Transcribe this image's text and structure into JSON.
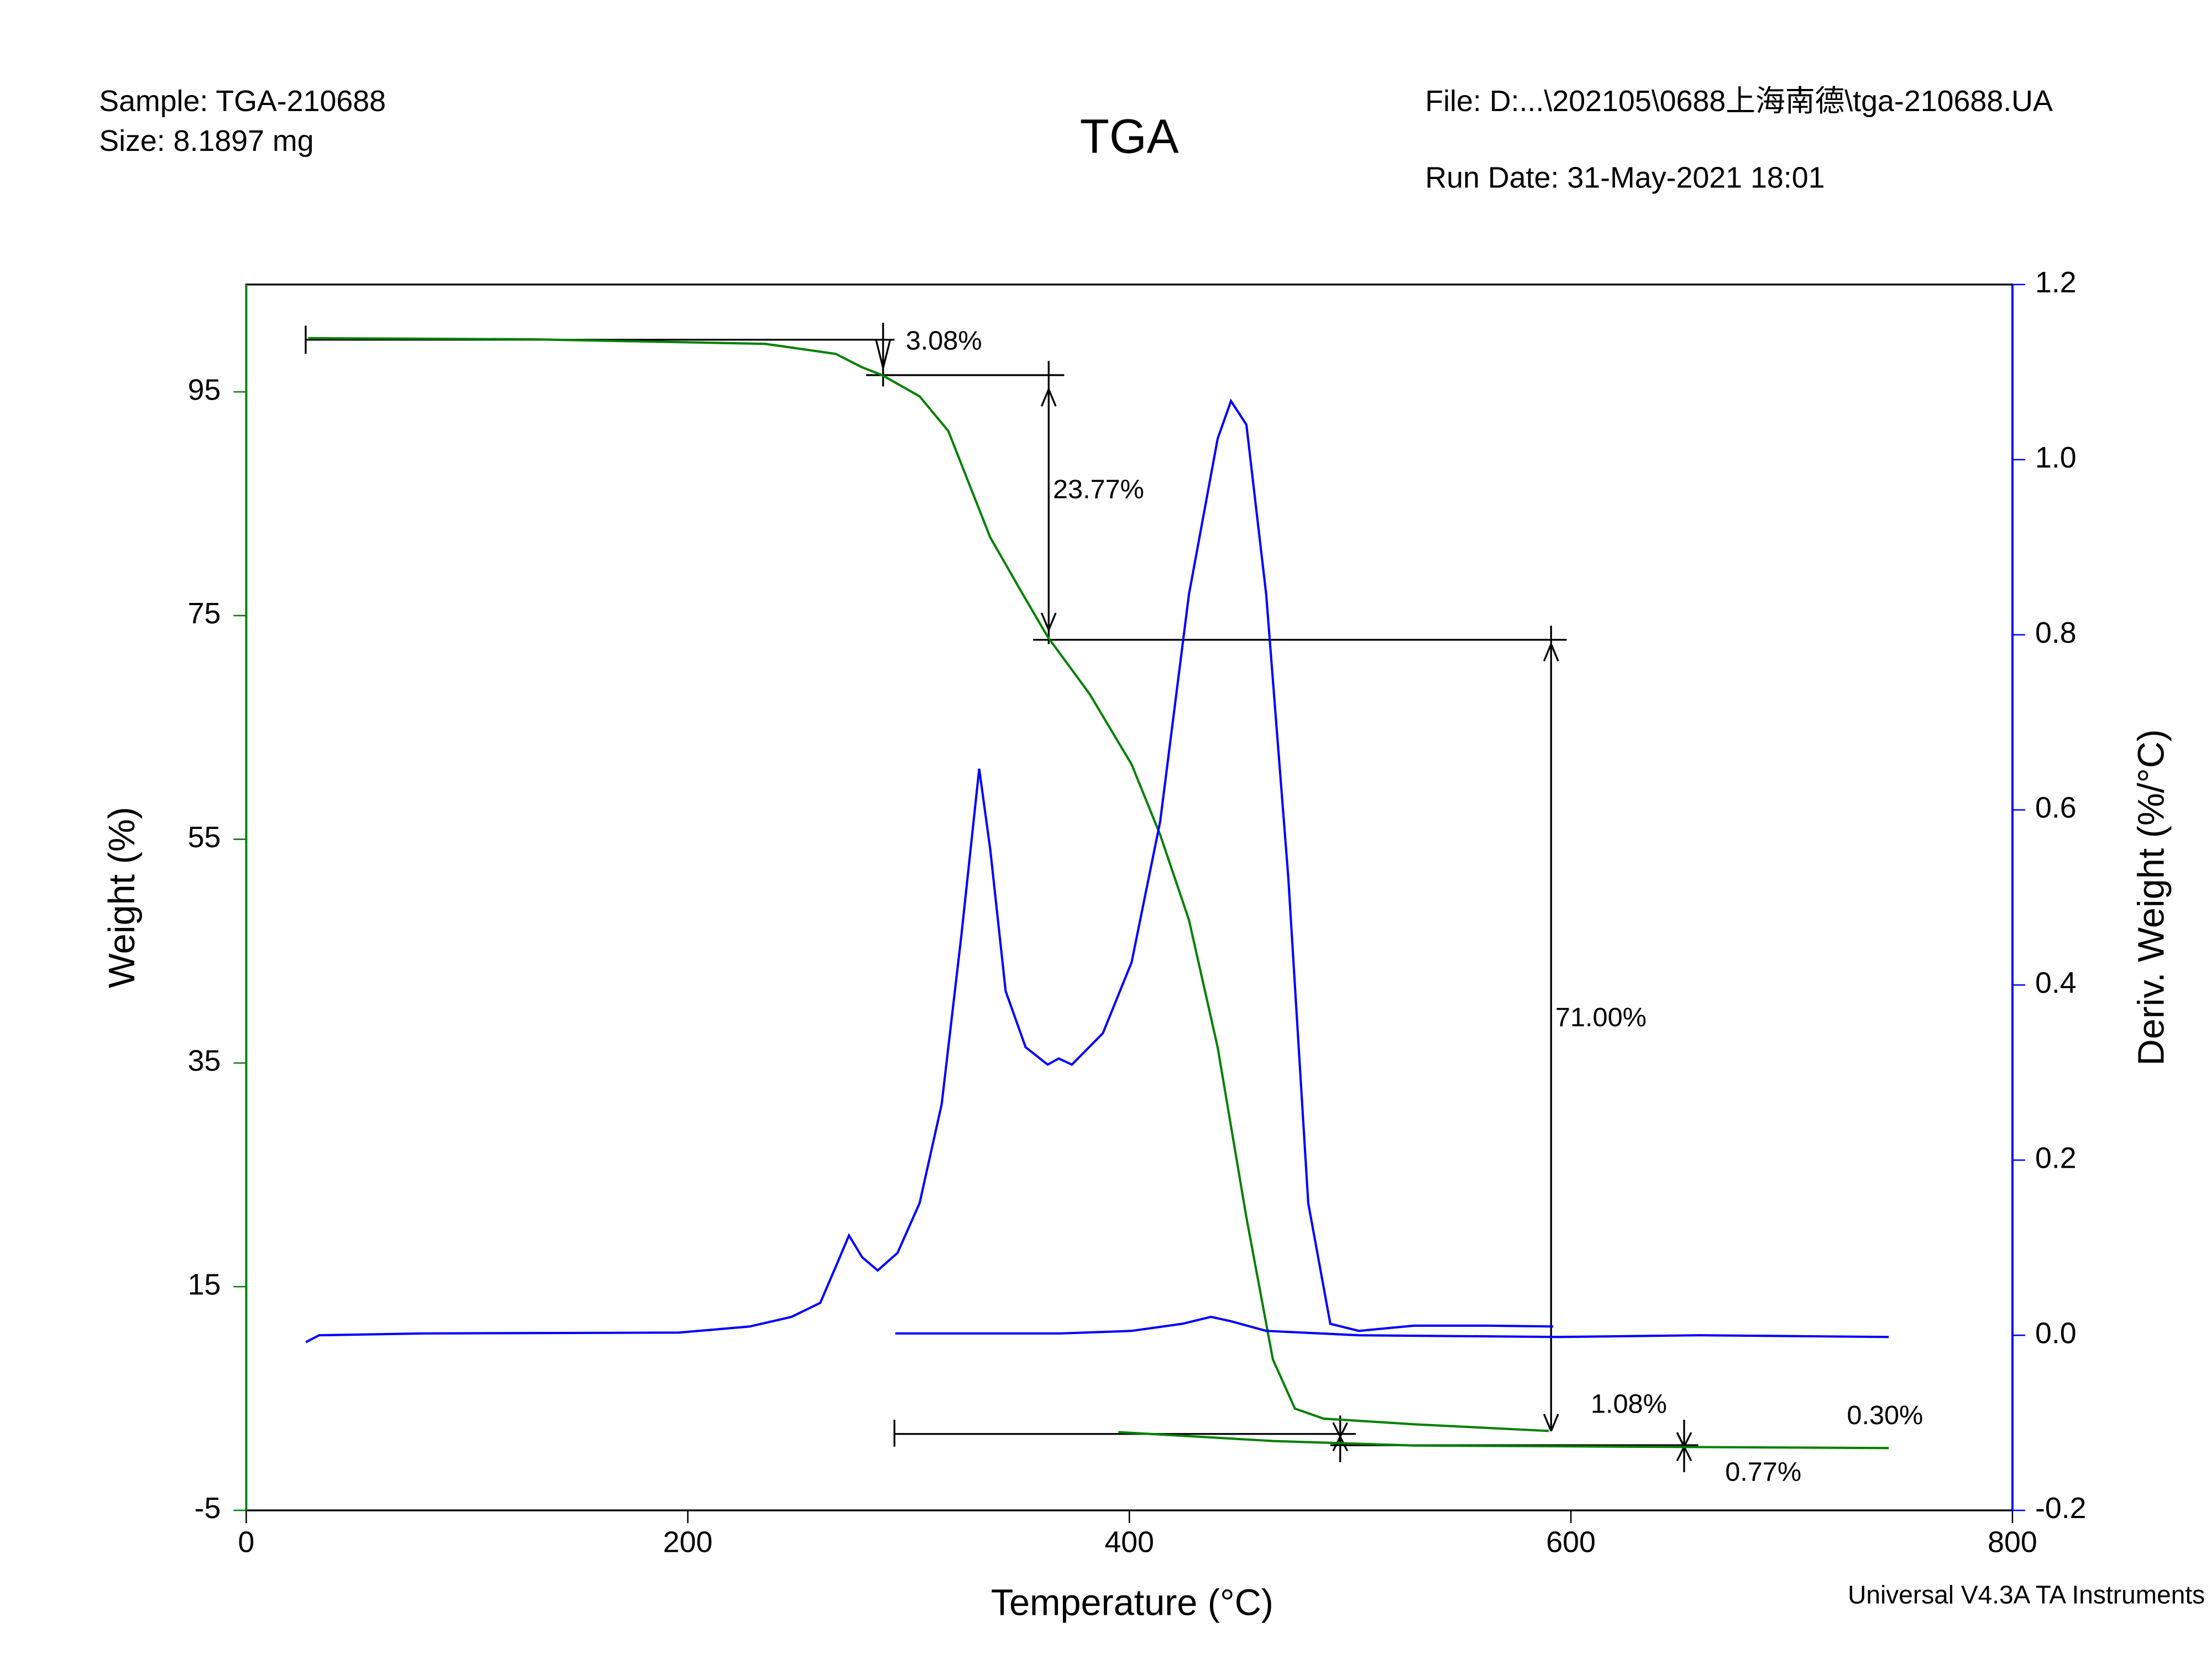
{
  "header": {
    "sample": "Sample: TGA-210688",
    "size": "Size:  8.1897 mg",
    "file": "File: D:...\\202105\\0688上海南德\\tga-210688.UA",
    "run_date": "Run Date: 31-May-2021 18:01",
    "footer": "Universal V4.3A TA Instruments"
  },
  "chart_data": {
    "type": "line",
    "title": "TGA",
    "x_label": "Temperature (°C)",
    "y_label": "Weight (%)",
    "y2_label": "Deriv. Weight (%/°C)",
    "xlim": [
      0,
      800
    ],
    "xticks": [
      0,
      200,
      400,
      600,
      800
    ],
    "ylim": [
      -5,
      104.6
    ],
    "yticks": [
      -5,
      15,
      35,
      55,
      75,
      95
    ],
    "y2lim": [
      -0.2,
      1.2
    ],
    "y2ticks": [
      -0.2,
      {
        "value": 0,
        "label": "0.0"
      },
      0.2,
      0.4,
      0.6,
      0.8,
      {
        "value": 1,
        "label": "1.0"
      },
      1.2
    ],
    "y_color": "#008000",
    "y2_color": "#0000ff",
    "series": [
      {
        "name": "Weight",
        "color": "#008000",
        "x": [
          28,
          129,
          235,
          267,
          279,
          288,
          305,
          318,
          327,
          337,
          350,
          363,
          382,
          401,
          414,
          427,
          440,
          453,
          465,
          475,
          488,
          529,
          590,
          null,
          395,
          465,
          529,
          744
        ],
        "values": [
          99.8,
          99.7,
          99.3,
          98.4,
          97.2,
          96.5,
          94.6,
          91.5,
          87.0,
          82.0,
          77.5,
          73.1,
          68.0,
          61.7,
          55.4,
          47.8,
          36.4,
          21.2,
          8.5,
          4.1,
          3.2,
          2.7,
          2.1,
          null,
          2.0,
          1.2,
          0.8,
          0.57
        ]
      },
      {
        "name": "Deriv. Weight",
        "color": "#0000ff",
        "axis": "y2",
        "x": [
          27,
          33,
          81,
          196,
          228,
          247,
          260,
          267,
          273,
          279,
          286,
          295,
          305,
          315,
          324,
          332,
          337,
          344,
          353,
          363,
          368,
          374,
          388,
          401,
          414,
          427,
          440,
          446,
          453,
          462,
          472,
          481,
          491,
          504,
          529,
          562,
          592,
          null,
          294,
          369,
          401,
          424,
          437,
          446,
          462,
          504,
          594,
          658,
          744
        ],
        "values": [
          -0.008,
          0.0,
          0.002,
          0.003,
          0.01,
          0.021,
          0.037,
          0.078,
          0.114,
          0.089,
          0.074,
          0.094,
          0.151,
          0.264,
          0.458,
          0.647,
          0.555,
          0.393,
          0.329,
          0.309,
          0.316,
          0.309,
          0.345,
          0.426,
          0.587,
          0.846,
          1.024,
          1.067,
          1.04,
          0.846,
          0.523,
          0.151,
          0.013,
          0.005,
          0.011,
          0.011,
          0.01,
          null,
          0.002,
          0.002,
          0.005,
          0.013,
          0.021,
          0.016,
          0.005,
          0.0,
          -0.002,
          0.0,
          -0.002
        ]
      }
    ],
    "annotations": [
      "3.08%",
      "23.77%",
      "71.00%",
      "1.08%",
      "0.30%",
      "0.77%"
    ]
  }
}
